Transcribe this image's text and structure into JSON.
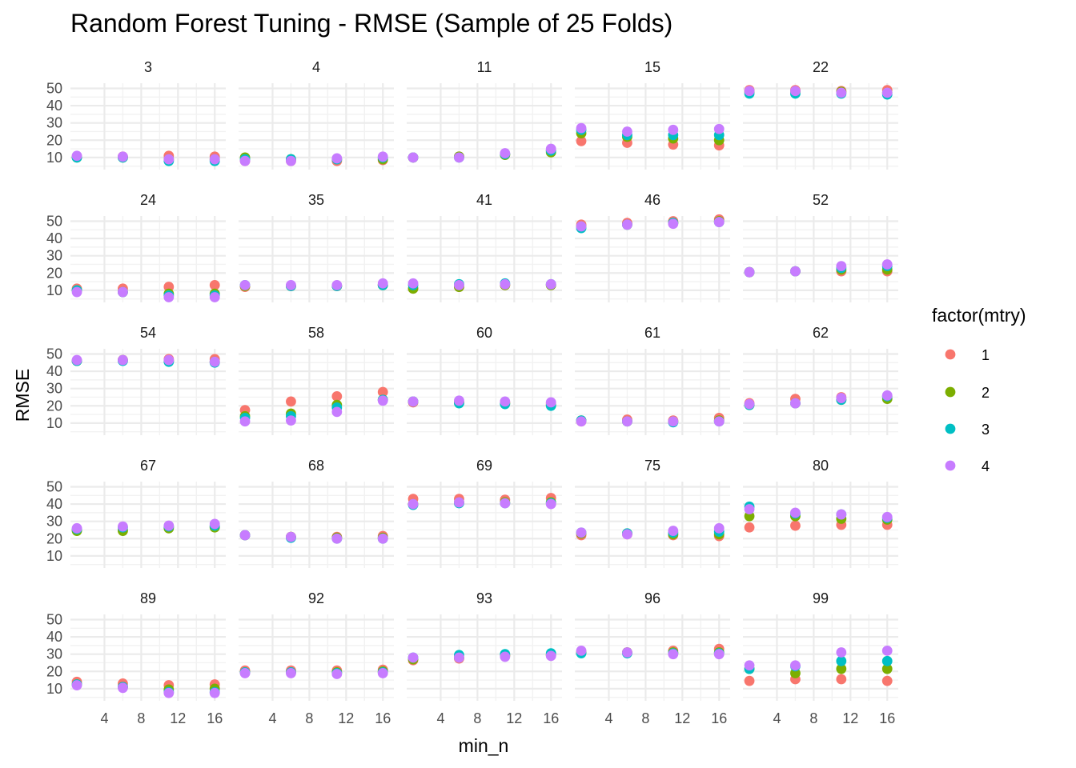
{
  "chart_data": {
    "type": "scatter",
    "title": "Random Forest Tuning - RMSE (Sample of 25 Folds)",
    "xlabel": "min_n",
    "ylabel": "RMSE",
    "x_ticks": [
      4,
      8,
      12,
      16
    ],
    "y_ticks": [
      10,
      20,
      30,
      40,
      50
    ],
    "xlim": [
      0.3,
      17.2
    ],
    "ylim": [
      3,
      53
    ],
    "grid": true,
    "legend": {
      "title": "factor(mtry)",
      "placement": "right",
      "entries": [
        {
          "label": "1",
          "color": "#F8766D"
        },
        {
          "label": "2",
          "color": "#7CAE00"
        },
        {
          "label": "3",
          "color": "#00BFC4"
        },
        {
          "label": "4",
          "color": "#C77CFF"
        }
      ]
    },
    "x": [
      1,
      6,
      11,
      16
    ],
    "panels": [
      {
        "label": "3",
        "series": [
          [
            10.5,
            10.5,
            11,
            10.5
          ],
          [
            10,
            10,
            9,
            9
          ],
          [
            10,
            10,
            8,
            8
          ],
          [
            11,
            10.5,
            9,
            9
          ]
        ]
      },
      {
        "label": "4",
        "series": [
          [
            8,
            8,
            8,
            8.5
          ],
          [
            10,
            9,
            9,
            9
          ],
          [
            9,
            9,
            9,
            10
          ],
          [
            8,
            8,
            9.5,
            10.5
          ]
        ]
      },
      {
        "label": "11",
        "series": [
          [
            10,
            10.5,
            12,
            14
          ],
          [
            10,
            10.5,
            11.5,
            13
          ],
          [
            10,
            10,
            12,
            14
          ],
          [
            10,
            10,
            12.5,
            15
          ]
        ]
      },
      {
        "label": "15",
        "series": [
          [
            19.5,
            18.5,
            17.5,
            17
          ],
          [
            24,
            22,
            21,
            20
          ],
          [
            26,
            23,
            23,
            23
          ],
          [
            27,
            25,
            26,
            26.5
          ]
        ]
      },
      {
        "label": "22",
        "series": [
          [
            49,
            49,
            48.5,
            49
          ],
          [
            48,
            48,
            48,
            47.5
          ],
          [
            47,
            47,
            47,
            46.5
          ],
          [
            48.5,
            48.5,
            47.5,
            47.5
          ]
        ]
      },
      {
        "label": "24",
        "series": [
          [
            11,
            11,
            12,
            13
          ],
          [
            10,
            9,
            8,
            8
          ],
          [
            10,
            9,
            7,
            7
          ],
          [
            9,
            9,
            6,
            6
          ]
        ]
      },
      {
        "label": "35",
        "series": [
          [
            12,
            12.5,
            12.5,
            13
          ],
          [
            12.5,
            12.5,
            12.5,
            13
          ],
          [
            13,
            12.5,
            12.5,
            13
          ],
          [
            13,
            13,
            13,
            14
          ]
        ]
      },
      {
        "label": "41",
        "series": [
          [
            11,
            12,
            13,
            13
          ],
          [
            11,
            12,
            13,
            13
          ],
          [
            13,
            13.5,
            14,
            13.5
          ],
          [
            14,
            13,
            13.5,
            13.5
          ]
        ]
      },
      {
        "label": "46",
        "series": [
          [
            48,
            49,
            50,
            51
          ],
          [
            47,
            48,
            49,
            50
          ],
          [
            46,
            48,
            49,
            49.5
          ],
          [
            47,
            48,
            48.5,
            49.5
          ]
        ]
      },
      {
        "label": "52",
        "series": [
          [
            20.5,
            21,
            21,
            21
          ],
          [
            20.5,
            21,
            22,
            22
          ],
          [
            20.5,
            21,
            23,
            24
          ],
          [
            20.5,
            21,
            24,
            25
          ]
        ]
      },
      {
        "label": "54",
        "series": [
          [
            46,
            46.5,
            47,
            47
          ],
          [
            46,
            46.5,
            46,
            45.5
          ],
          [
            46,
            46,
            45.5,
            45
          ],
          [
            46.5,
            46.5,
            46.5,
            45.5
          ]
        ]
      },
      {
        "label": "58",
        "series": [
          [
            17.5,
            22.5,
            25.5,
            28
          ],
          [
            14,
            15.5,
            20.5,
            23.5
          ],
          [
            13,
            14,
            19,
            23.5
          ],
          [
            11,
            11.5,
            16.5,
            23
          ]
        ]
      },
      {
        "label": "60",
        "series": [
          [
            22,
            22,
            22,
            21.5
          ],
          [
            22.5,
            22,
            21.5,
            20.5
          ],
          [
            22.5,
            21.5,
            21,
            20
          ],
          [
            22.5,
            23,
            22.5,
            22
          ]
        ]
      },
      {
        "label": "61",
        "series": [
          [
            11,
            12,
            11.5,
            13
          ],
          [
            11.5,
            11,
            11,
            11.5
          ],
          [
            11.5,
            11,
            10.5,
            11
          ],
          [
            11,
            11,
            11,
            11
          ]
        ]
      },
      {
        "label": "62",
        "series": [
          [
            21.5,
            24,
            25,
            25.5
          ],
          [
            20.5,
            21.5,
            23.5,
            24
          ],
          [
            20.5,
            21.5,
            23.5,
            25.5
          ],
          [
            21,
            21.5,
            24.5,
            26
          ]
        ]
      },
      {
        "label": "67",
        "series": [
          [
            25,
            25,
            26.5,
            27
          ],
          [
            24.5,
            24.5,
            26,
            26.5
          ],
          [
            25.5,
            26.5,
            27,
            27.5
          ],
          [
            26,
            27,
            27.5,
            28.5
          ]
        ]
      },
      {
        "label": "68",
        "series": [
          [
            22,
            21,
            21,
            21.5
          ],
          [
            22,
            21,
            20.5,
            20.5
          ],
          [
            22,
            20.5,
            20,
            20
          ],
          [
            22,
            21,
            20,
            20
          ]
        ]
      },
      {
        "label": "69",
        "series": [
          [
            43,
            43,
            42.5,
            43.5
          ],
          [
            40,
            41,
            41,
            41
          ],
          [
            39.5,
            40.5,
            40.5,
            40.5
          ],
          [
            40,
            41,
            40.5,
            40
          ]
        ]
      },
      {
        "label": "75",
        "series": [
          [
            22,
            22.5,
            22,
            21.5
          ],
          [
            23,
            23,
            22.5,
            22.5
          ],
          [
            23.5,
            23,
            23.5,
            24
          ],
          [
            23.5,
            22.5,
            24.5,
            26
          ]
        ]
      },
      {
        "label": "80",
        "series": [
          [
            26.5,
            27.5,
            28,
            28
          ],
          [
            33,
            33,
            31.5,
            31
          ],
          [
            38.5,
            34.5,
            34,
            32
          ],
          [
            37,
            35,
            34,
            32.5
          ]
        ]
      },
      {
        "label": "89",
        "series": [
          [
            14,
            13,
            12,
            12.5
          ],
          [
            12.5,
            11,
            9.5,
            10
          ],
          [
            12.5,
            11,
            8,
            8
          ],
          [
            12,
            10.5,
            7.5,
            7.5
          ]
        ]
      },
      {
        "label": "92",
        "series": [
          [
            20.5,
            20.5,
            20.5,
            21
          ],
          [
            19.5,
            19.5,
            19.5,
            20
          ],
          [
            19.5,
            19.5,
            19,
            19.5
          ],
          [
            19,
            19,
            18.5,
            19
          ]
        ]
      },
      {
        "label": "93",
        "series": [
          [
            26.5,
            27.5,
            29.5,
            29.5
          ],
          [
            27,
            28,
            29,
            29.5
          ],
          [
            28,
            29.5,
            30,
            30.5
          ],
          [
            28,
            28,
            28.5,
            29
          ]
        ]
      },
      {
        "label": "96",
        "series": [
          [
            31.5,
            31,
            32,
            33
          ],
          [
            31,
            31,
            31,
            31
          ],
          [
            30.5,
            30.5,
            30.5,
            30.5
          ],
          [
            32,
            31,
            30,
            30
          ]
        ]
      },
      {
        "label": "99",
        "series": [
          [
            14.5,
            15.5,
            15.5,
            14.5
          ],
          [
            21.5,
            19,
            21.5,
            21.5
          ],
          [
            21.5,
            23,
            26,
            26
          ],
          [
            23.5,
            23.5,
            31,
            32
          ]
        ]
      }
    ]
  }
}
